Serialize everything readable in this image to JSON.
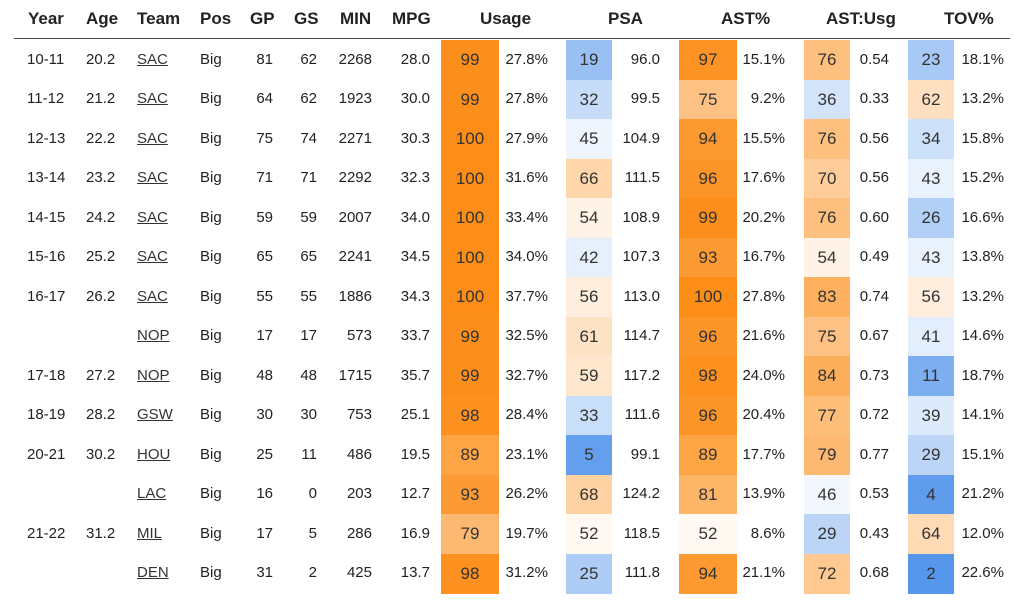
{
  "columns": {
    "year": "Year",
    "age": "Age",
    "team": "Team",
    "pos": "Pos",
    "gp": "GP",
    "gs": "GS",
    "min": "MIN",
    "mpg": "MPG",
    "usage": "Usage",
    "psa": "PSA",
    "astpct": "AST%",
    "astusg": "AST:Usg",
    "tov": "TOV%"
  },
  "rows": [
    {
      "year": "10-11",
      "age": "20.2",
      "team": "SAC",
      "pos": "Big",
      "gp": "81",
      "gs": "62",
      "min": "2268",
      "mpg": "28.0",
      "usage_pct": 99,
      "usage": "27.8%",
      "psa_pct": 19,
      "psa": "96.0",
      "ast_pct": 97,
      "ast": "15.1%",
      "astusg_pct": 76,
      "astusg": "0.54",
      "tov_pct": 23,
      "tov": "18.1%"
    },
    {
      "year": "11-12",
      "age": "21.2",
      "team": "SAC",
      "pos": "Big",
      "gp": "64",
      "gs": "62",
      "min": "1923",
      "mpg": "30.0",
      "usage_pct": 99,
      "usage": "27.8%",
      "psa_pct": 32,
      "psa": "99.5",
      "ast_pct": 75,
      "ast": "9.2%",
      "astusg_pct": 36,
      "astusg": "0.33",
      "tov_pct": 62,
      "tov": "13.2%"
    },
    {
      "year": "12-13",
      "age": "22.2",
      "team": "SAC",
      "pos": "Big",
      "gp": "75",
      "gs": "74",
      "min": "2271",
      "mpg": "30.3",
      "usage_pct": 100,
      "usage": "27.9%",
      "psa_pct": 45,
      "psa": "104.9",
      "ast_pct": 94,
      "ast": "15.5%",
      "astusg_pct": 76,
      "astusg": "0.56",
      "tov_pct": 34,
      "tov": "15.8%"
    },
    {
      "year": "13-14",
      "age": "23.2",
      "team": "SAC",
      "pos": "Big",
      "gp": "71",
      "gs": "71",
      "min": "2292",
      "mpg": "32.3",
      "usage_pct": 100,
      "usage": "31.6%",
      "psa_pct": 66,
      "psa": "111.5",
      "ast_pct": 96,
      "ast": "17.6%",
      "astusg_pct": 70,
      "astusg": "0.56",
      "tov_pct": 43,
      "tov": "15.2%"
    },
    {
      "year": "14-15",
      "age": "24.2",
      "team": "SAC",
      "pos": "Big",
      "gp": "59",
      "gs": "59",
      "min": "2007",
      "mpg": "34.0",
      "usage_pct": 100,
      "usage": "33.4%",
      "psa_pct": 54,
      "psa": "108.9",
      "ast_pct": 99,
      "ast": "20.2%",
      "astusg_pct": 76,
      "astusg": "0.60",
      "tov_pct": 26,
      "tov": "16.6%"
    },
    {
      "year": "15-16",
      "age": "25.2",
      "team": "SAC",
      "pos": "Big",
      "gp": "65",
      "gs": "65",
      "min": "2241",
      "mpg": "34.5",
      "usage_pct": 100,
      "usage": "34.0%",
      "psa_pct": 42,
      "psa": "107.3",
      "ast_pct": 93,
      "ast": "16.7%",
      "astusg_pct": 54,
      "astusg": "0.49",
      "tov_pct": 43,
      "tov": "13.8%"
    },
    {
      "year": "16-17",
      "age": "26.2",
      "team": "SAC",
      "pos": "Big",
      "gp": "55",
      "gs": "55",
      "min": "1886",
      "mpg": "34.3",
      "usage_pct": 100,
      "usage": "37.7%",
      "psa_pct": 56,
      "psa": "113.0",
      "ast_pct": 100,
      "ast": "27.8%",
      "astusg_pct": 83,
      "astusg": "0.74",
      "tov_pct": 56,
      "tov": "13.2%"
    },
    {
      "year": "",
      "age": "",
      "team": "NOP",
      "pos": "Big",
      "gp": "17",
      "gs": "17",
      "min": "573",
      "mpg": "33.7",
      "usage_pct": 99,
      "usage": "32.5%",
      "psa_pct": 61,
      "psa": "114.7",
      "ast_pct": 96,
      "ast": "21.6%",
      "astusg_pct": 75,
      "astusg": "0.67",
      "tov_pct": 41,
      "tov": "14.6%"
    },
    {
      "year": "17-18",
      "age": "27.2",
      "team": "NOP",
      "pos": "Big",
      "gp": "48",
      "gs": "48",
      "min": "1715",
      "mpg": "35.7",
      "usage_pct": 99,
      "usage": "32.7%",
      "psa_pct": 59,
      "psa": "117.2",
      "ast_pct": 98,
      "ast": "24.0%",
      "astusg_pct": 84,
      "astusg": "0.73",
      "tov_pct": 11,
      "tov": "18.7%"
    },
    {
      "year": "18-19",
      "age": "28.2",
      "team": "GSW",
      "pos": "Big",
      "gp": "30",
      "gs": "30",
      "min": "753",
      "mpg": "25.1",
      "usage_pct": 98,
      "usage": "28.4%",
      "psa_pct": 33,
      "psa": "111.6",
      "ast_pct": 96,
      "ast": "20.4%",
      "astusg_pct": 77,
      "astusg": "0.72",
      "tov_pct": 39,
      "tov": "14.1%"
    },
    {
      "year": "20-21",
      "age": "30.2",
      "team": "HOU",
      "pos": "Big",
      "gp": "25",
      "gs": "11",
      "min": "486",
      "mpg": "19.5",
      "usage_pct": 89,
      "usage": "23.1%",
      "psa_pct": 5,
      "psa": "99.1",
      "ast_pct": 89,
      "ast": "17.7%",
      "astusg_pct": 79,
      "astusg": "0.77",
      "tov_pct": 29,
      "tov": "15.1%"
    },
    {
      "year": "",
      "age": "",
      "team": "LAC",
      "pos": "Big",
      "gp": "16",
      "gs": "0",
      "min": "203",
      "mpg": "12.7",
      "usage_pct": 93,
      "usage": "26.2%",
      "psa_pct": 68,
      "psa": "124.2",
      "ast_pct": 81,
      "ast": "13.9%",
      "astusg_pct": 46,
      "astusg": "0.53",
      "tov_pct": 4,
      "tov": "21.2%"
    },
    {
      "year": "21-22",
      "age": "31.2",
      "team": "MIL",
      "pos": "Big",
      "gp": "17",
      "gs": "5",
      "min": "286",
      "mpg": "16.9",
      "usage_pct": 79,
      "usage": "19.7%",
      "psa_pct": 52,
      "psa": "118.5",
      "ast_pct": 52,
      "ast": "8.6%",
      "astusg_pct": 29,
      "astusg": "0.43",
      "tov_pct": 64,
      "tov": "12.0%"
    },
    {
      "year": "",
      "age": "",
      "team": "DEN",
      "pos": "Big",
      "gp": "31",
      "gs": "2",
      "min": "425",
      "mpg": "13.7",
      "usage_pct": 98,
      "usage": "31.2%",
      "psa_pct": 25,
      "psa": "111.8",
      "ast_pct": 94,
      "ast": "21.1%",
      "astusg_pct": 72,
      "astusg": "0.68",
      "tov_pct": 2,
      "tov": "22.6%"
    }
  ]
}
